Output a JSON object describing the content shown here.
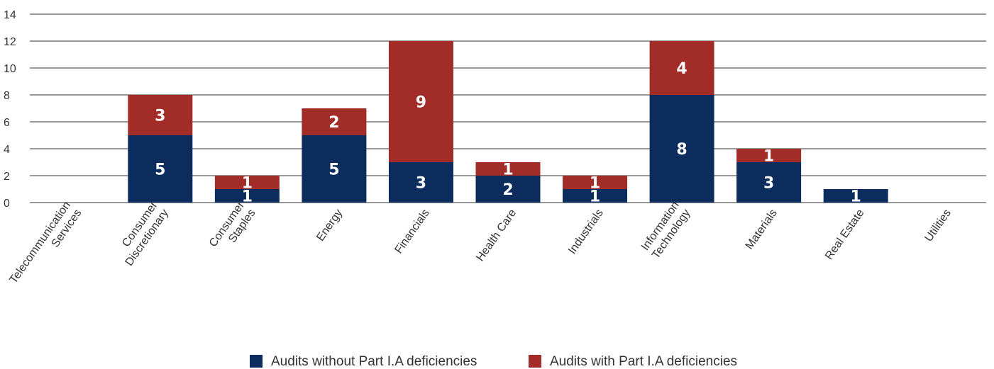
{
  "chart_data": {
    "type": "bar",
    "stacked": true,
    "categories": [
      "Telecommunication Services",
      "Consumer Discretionary",
      "Consumer Staples",
      "Energy",
      "Financials",
      "Health Care",
      "Industrials",
      "Information Technology",
      "Materials",
      "Real Estate",
      "Utilities"
    ],
    "category_lines": [
      [
        "Telecommunication",
        "Services"
      ],
      [
        "Consumer",
        "Discretionary"
      ],
      [
        "Consumer",
        "Staples"
      ],
      [
        "Energy"
      ],
      [
        "Financials"
      ],
      [
        "Health Care"
      ],
      [
        "Industrials"
      ],
      [
        "Information",
        "Technology"
      ],
      [
        "Materials"
      ],
      [
        "Real Estate"
      ],
      [
        "Utilities"
      ]
    ],
    "series": [
      {
        "name": "Audits without Part I.A deficiencies",
        "color": "#0d2c5e",
        "values": [
          0,
          5,
          1,
          5,
          3,
          2,
          1,
          8,
          3,
          1,
          0
        ]
      },
      {
        "name": "Audits with Part I.A deficiencies",
        "color": "#a22c28",
        "values": [
          0,
          3,
          1,
          2,
          9,
          1,
          1,
          4,
          1,
          0,
          0
        ]
      }
    ],
    "ylim": [
      0,
      14
    ],
    "yticks": [
      0,
      2,
      4,
      6,
      8,
      10,
      12,
      14
    ],
    "grid": true,
    "legend": "bottom-center",
    "xlabel": "",
    "ylabel": "",
    "title": ""
  }
}
